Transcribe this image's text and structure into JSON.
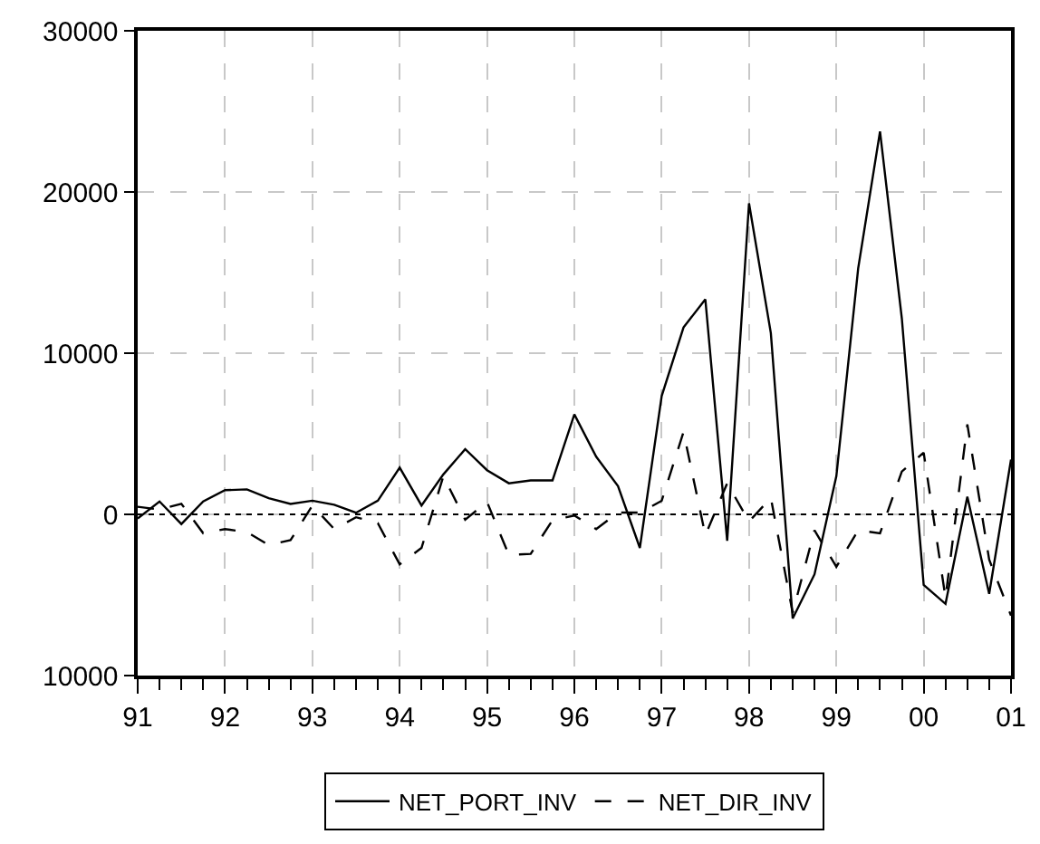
{
  "chart_data": {
    "type": "line",
    "x": [
      1991.0,
      1991.25,
      1991.5,
      1991.75,
      1992.0,
      1992.25,
      1992.5,
      1992.75,
      1993.0,
      1993.25,
      1993.5,
      1993.75,
      1994.0,
      1994.25,
      1994.5,
      1994.75,
      1995.0,
      1995.25,
      1995.5,
      1995.75,
      1996.0,
      1996.25,
      1996.5,
      1996.75,
      1997.0,
      1997.25,
      1997.5,
      1997.75,
      1998.0,
      1998.25,
      1998.5,
      1998.75,
      1999.0,
      1999.25,
      1999.5,
      1999.75,
      2000.0,
      2000.25,
      2000.5,
      2000.75,
      2001.0
    ],
    "series": [
      {
        "name": "NET_PORT_INV",
        "color": "#000000",
        "line_style": "solid",
        "values": [
          -250,
          800,
          -600,
          800,
          1500,
          1550,
          1000,
          650,
          850,
          600,
          100,
          850,
          2900,
          550,
          2480,
          4050,
          2740,
          1930,
          2110,
          2110,
          6200,
          3580,
          1750,
          -2080,
          7340,
          11600,
          13340,
          -1640,
          19300,
          11240,
          -6460,
          -3720,
          2370,
          15260,
          23760,
          12150,
          -4380,
          -5550,
          1100,
          -4930,
          3400
        ]
      },
      {
        "name": "NET_DIR_INV",
        "color": "#000000",
        "line_style": "dashed",
        "values": [
          470,
          300,
          660,
          -1170,
          -910,
          -1100,
          -1900,
          -1600,
          550,
          -910,
          -180,
          -550,
          -3100,
          -2080,
          2370,
          -330,
          770,
          -2520,
          -2450,
          -360,
          -70,
          -910,
          110,
          110,
          840,
          5110,
          -1300,
          1930,
          -440,
          1020,
          -6100,
          -990,
          -3250,
          -990,
          -1170,
          2660,
          3830,
          -5180,
          5580,
          -2810,
          -6280
        ]
      }
    ],
    "xlim": [
      1991,
      2001
    ],
    "xticks": [
      {
        "value": 1991,
        "label": "91"
      },
      {
        "value": 1991.25,
        "label": null
      },
      {
        "value": 1991.5,
        "label": null
      },
      {
        "value": 1991.75,
        "label": null
      },
      {
        "value": 1992,
        "label": "92"
      },
      {
        "value": 1992.25,
        "label": null
      },
      {
        "value": 1992.5,
        "label": null
      },
      {
        "value": 1992.75,
        "label": null
      },
      {
        "value": 1993,
        "label": "93"
      },
      {
        "value": 1993.25,
        "label": null
      },
      {
        "value": 1993.5,
        "label": null
      },
      {
        "value": 1993.75,
        "label": null
      },
      {
        "value": 1994,
        "label": "94"
      },
      {
        "value": 1994.25,
        "label": null
      },
      {
        "value": 1994.5,
        "label": null
      },
      {
        "value": 1994.75,
        "label": null
      },
      {
        "value": 1995,
        "label": "95"
      },
      {
        "value": 1995.25,
        "label": null
      },
      {
        "value": 1995.5,
        "label": null
      },
      {
        "value": 1995.75,
        "label": null
      },
      {
        "value": 1996,
        "label": "96"
      },
      {
        "value": 1996.25,
        "label": null
      },
      {
        "value": 1996.5,
        "label": null
      },
      {
        "value": 1996.75,
        "label": null
      },
      {
        "value": 1997,
        "label": "97"
      },
      {
        "value": 1997.25,
        "label": null
      },
      {
        "value": 1997.5,
        "label": null
      },
      {
        "value": 1997.75,
        "label": null
      },
      {
        "value": 1998,
        "label": "98"
      },
      {
        "value": 1998.25,
        "label": null
      },
      {
        "value": 1998.5,
        "label": null
      },
      {
        "value": 1998.75,
        "label": null
      },
      {
        "value": 1999,
        "label": "99"
      },
      {
        "value": 1999.25,
        "label": null
      },
      {
        "value": 1999.5,
        "label": null
      },
      {
        "value": 1999.75,
        "label": null
      },
      {
        "value": 2000,
        "label": "00"
      },
      {
        "value": 2000.25,
        "label": null
      },
      {
        "value": 2000.5,
        "label": null
      },
      {
        "value": 2000.75,
        "label": null
      },
      {
        "value": 2001,
        "label": "01"
      }
    ],
    "ylim": [
      -10000,
      30000
    ],
    "yticks": [
      {
        "value": -10000,
        "label": "10000"
      },
      0,
      10000,
      20000,
      30000
    ],
    "grid": true,
    "legend": "bottom",
    "marker": "none",
    "ref_lines": [
      {
        "axis": "y",
        "value": 0,
        "label": null,
        "color": "#000000",
        "line_style": "dotted"
      }
    ]
  }
}
